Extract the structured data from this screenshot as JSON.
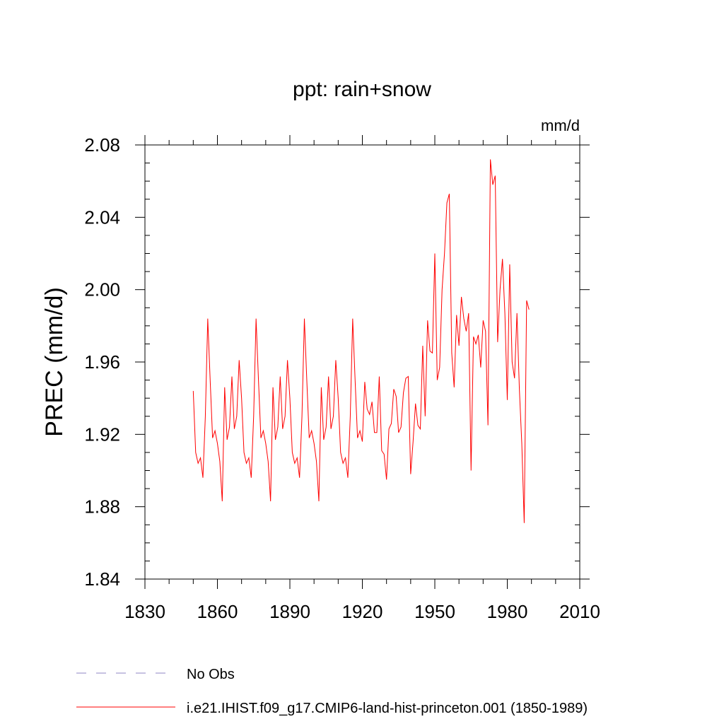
{
  "chart_data": {
    "type": "line",
    "title": "ppt: rain+snow",
    "units_label": "mm/d",
    "ylabel": "PREC  (mm/d)",
    "xlabel": "",
    "xlim": [
      1830,
      2010
    ],
    "ylim": [
      1.84,
      2.08
    ],
    "x_ticks": [
      1830,
      1860,
      1890,
      1920,
      1950,
      1980,
      2010
    ],
    "x_tick_labels": [
      "1830",
      "1860",
      "1890",
      "1920",
      "1950",
      "1980",
      "2010"
    ],
    "y_ticks": [
      1.84,
      1.88,
      1.92,
      1.96,
      2.0,
      2.04,
      2.08
    ],
    "y_tick_labels": [
      "1.84",
      "1.88",
      "1.92",
      "1.96",
      "2.00",
      "2.04",
      "2.08"
    ],
    "grid": false,
    "legend_position": "bottom-left",
    "series": [
      {
        "name": "No Obs",
        "color": "#8f84c4",
        "dash": "dashed",
        "x": [],
        "values": []
      },
      {
        "name": "i.e21.IHIST.f09_g17.CMIP6-land-hist-princeton.001 (1850-1989)",
        "color": "#ff0000",
        "dash": "solid",
        "x": [
          1850,
          1851,
          1852,
          1853,
          1854,
          1855,
          1856,
          1857,
          1858,
          1859,
          1860,
          1861,
          1862,
          1863,
          1864,
          1865,
          1866,
          1867,
          1868,
          1869,
          1870,
          1871,
          1872,
          1873,
          1874,
          1875,
          1876,
          1877,
          1878,
          1879,
          1880,
          1881,
          1882,
          1883,
          1884,
          1885,
          1886,
          1887,
          1888,
          1889,
          1890,
          1891,
          1892,
          1893,
          1894,
          1895,
          1896,
          1897,
          1898,
          1899,
          1900,
          1901,
          1902,
          1903,
          1904,
          1905,
          1906,
          1907,
          1908,
          1909,
          1910,
          1911,
          1912,
          1913,
          1914,
          1915,
          1916,
          1917,
          1918,
          1919,
          1920,
          1921,
          1922,
          1923,
          1924,
          1925,
          1926,
          1927,
          1928,
          1929,
          1930,
          1931,
          1932,
          1933,
          1934,
          1935,
          1936,
          1937,
          1938,
          1939,
          1940,
          1941,
          1942,
          1943,
          1944,
          1945,
          1946,
          1947,
          1948,
          1949,
          1950,
          1951,
          1952,
          1953,
          1954,
          1955,
          1956,
          1957,
          1958,
          1959,
          1960,
          1961,
          1962,
          1963,
          1964,
          1965,
          1966,
          1967,
          1968,
          1969,
          1970,
          1971,
          1972,
          1973,
          1974,
          1975,
          1976,
          1977,
          1978,
          1979,
          1980,
          1981,
          1982,
          1983,
          1984,
          1985,
          1986,
          1987,
          1988,
          1989
        ],
        "values": [
          1.944,
          1.91,
          1.904,
          1.907,
          1.896,
          1.93,
          1.984,
          1.95,
          1.918,
          1.922,
          1.915,
          1.905,
          1.883,
          1.946,
          1.917,
          1.924,
          1.952,
          1.923,
          1.93,
          1.961,
          1.94,
          1.91,
          1.904,
          1.907,
          1.896,
          1.93,
          1.984,
          1.95,
          1.918,
          1.922,
          1.915,
          1.905,
          1.883,
          1.946,
          1.917,
          1.924,
          1.952,
          1.923,
          1.93,
          1.961,
          1.94,
          1.91,
          1.904,
          1.907,
          1.896,
          1.93,
          1.984,
          1.95,
          1.918,
          1.922,
          1.915,
          1.905,
          1.883,
          1.946,
          1.917,
          1.924,
          1.952,
          1.923,
          1.93,
          1.961,
          1.94,
          1.91,
          1.904,
          1.907,
          1.896,
          1.93,
          1.984,
          1.95,
          1.918,
          1.922,
          1.916,
          1.949,
          1.934,
          1.931,
          1.938,
          1.921,
          1.921,
          1.952,
          1.911,
          1.909,
          1.895,
          1.923,
          1.926,
          1.945,
          1.941,
          1.921,
          1.924,
          1.943,
          1.951,
          1.952,
          1.898,
          1.916,
          1.937,
          1.925,
          1.923,
          1.969,
          1.93,
          1.983,
          1.966,
          1.965,
          2.02,
          1.95,
          1.957,
          2.0,
          2.02,
          2.048,
          2.053,
          1.965,
          1.946,
          1.986,
          1.969,
          1.996,
          1.984,
          1.977,
          1.987,
          1.9,
          1.974,
          1.97,
          1.975,
          1.957,
          1.983,
          1.977,
          1.925,
          2.072,
          2.058,
          2.063,
          1.971,
          2.0,
          2.017,
          1.987,
          1.939,
          2.014,
          1.96,
          1.951,
          1.987,
          1.945,
          1.915,
          1.871,
          1.994,
          1.989
        ]
      }
    ]
  }
}
